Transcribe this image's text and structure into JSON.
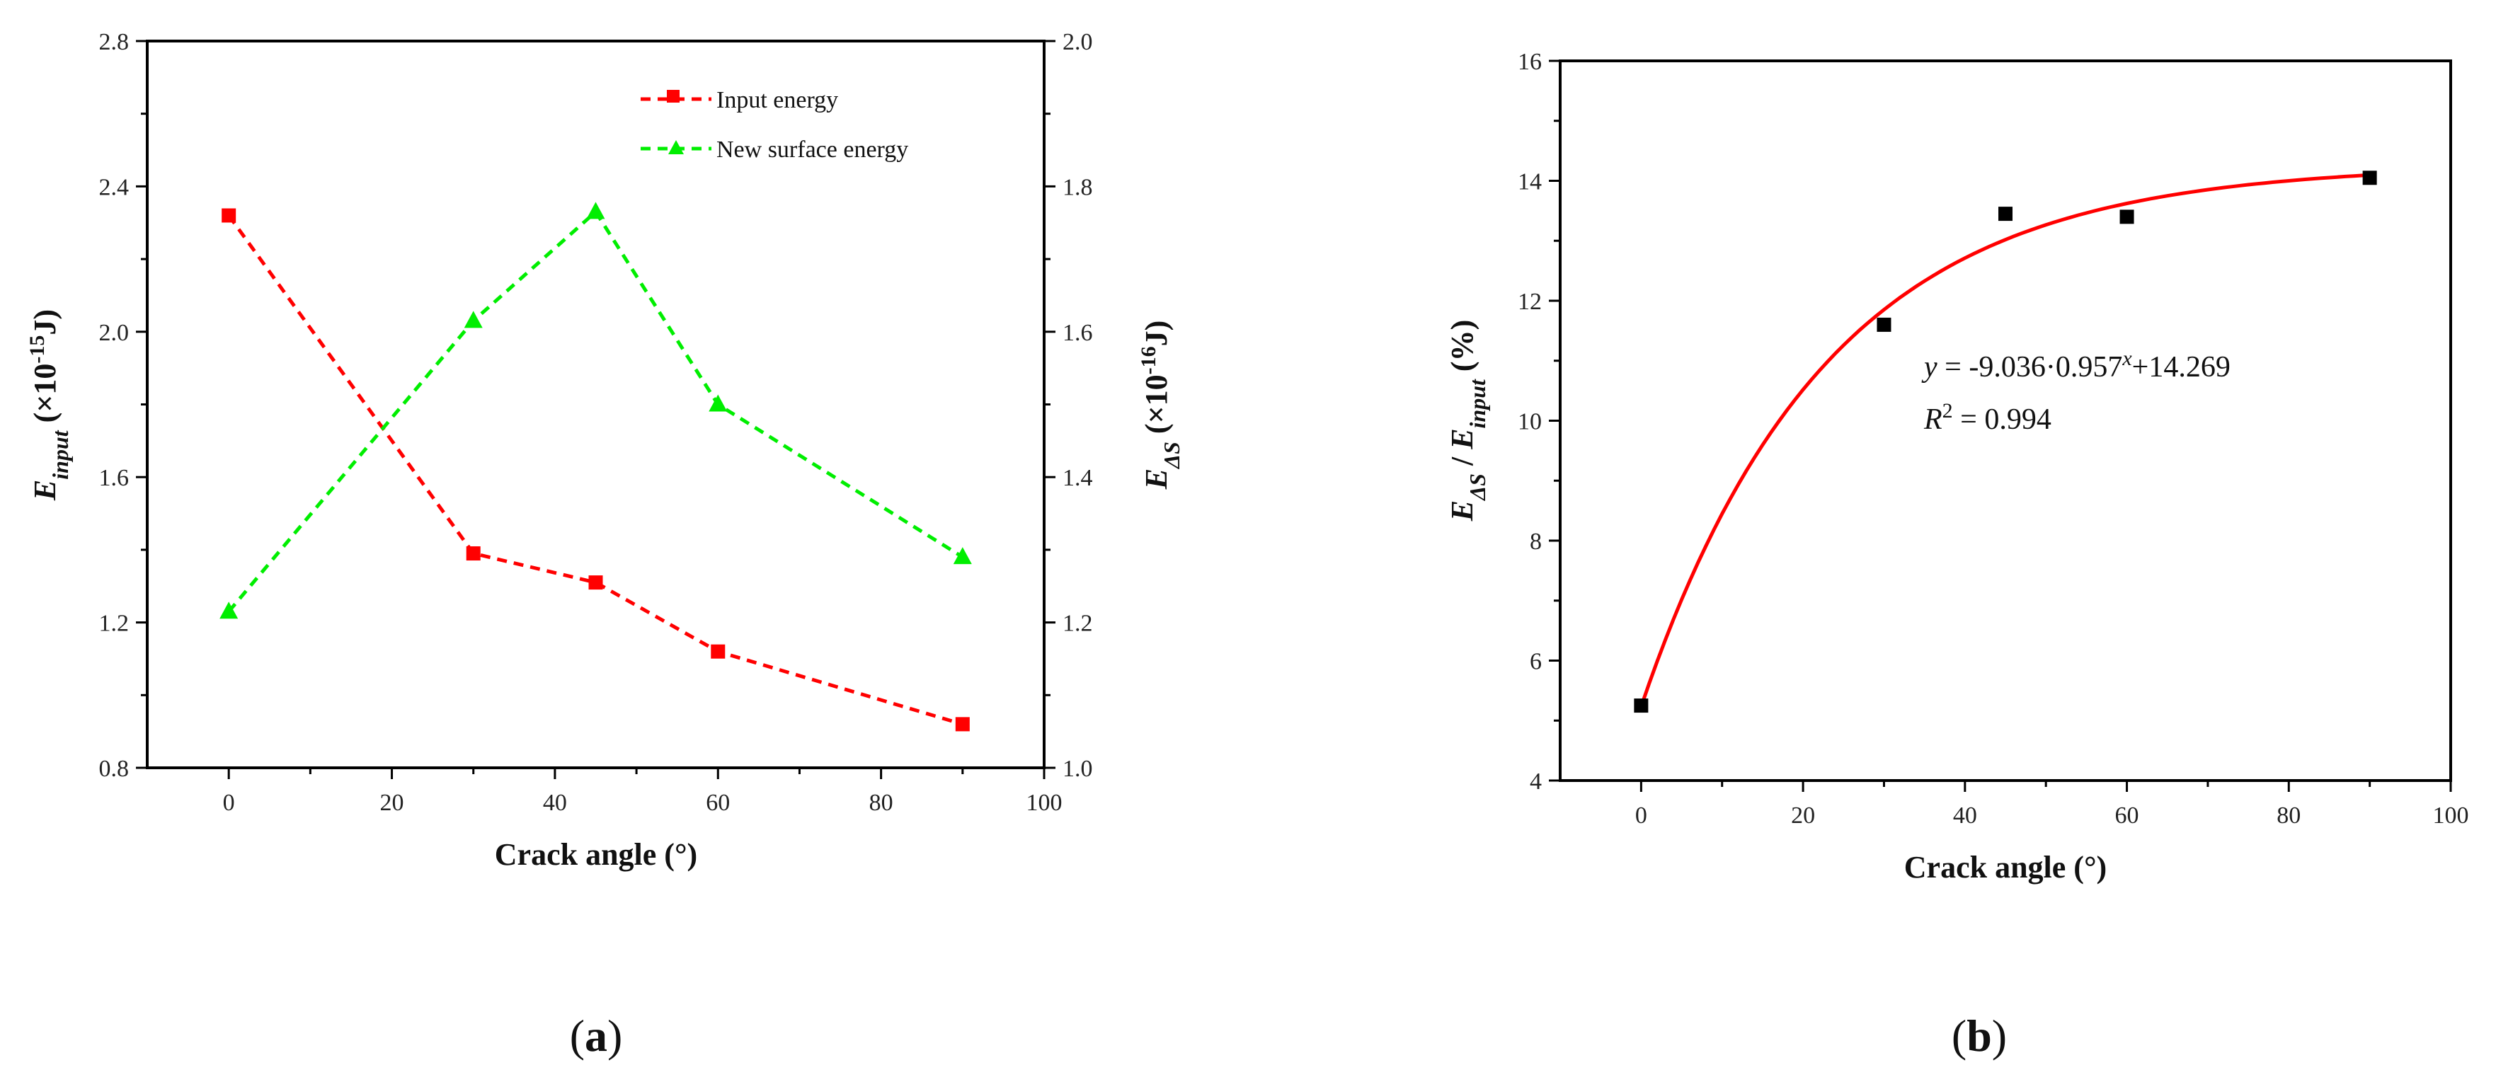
{
  "chart_data": [
    {
      "type": "line",
      "panel_label": "a",
      "xlabel": "Crack angle (°)",
      "xlim": [
        -10,
        100
      ],
      "xticks": [
        0,
        20,
        40,
        60,
        80,
        100
      ],
      "ylabel_left": {
        "main": "E",
        "sub": "input",
        "units": " (×10",
        "exp": "-15",
        "tail": "J)"
      },
      "ylim_left": [
        0.8,
        2.8
      ],
      "yticks_left": [
        "0.8",
        "1.2",
        "1.6",
        "2.0",
        "2.4",
        "2.8"
      ],
      "ylabel_right": {
        "main": "E",
        "sub": "ΔS",
        "units": " (×10",
        "exp": "-16",
        "tail": "J)"
      },
      "ylim_right": [
        1.0,
        2.0
      ],
      "yticks_right": [
        "1.0",
        "1.2",
        "1.4",
        "1.6",
        "1.8",
        "2.0"
      ],
      "x": [
        0,
        30,
        45,
        60,
        90
      ],
      "series": [
        {
          "name": "Input energy",
          "axis": "left",
          "color": "#ff0000",
          "marker": "square",
          "values": [
            2.32,
            1.39,
            1.31,
            1.12,
            0.92
          ]
        },
        {
          "name": "New surface energy",
          "axis": "right",
          "color": "#00ee00",
          "marker": "triangle",
          "values": [
            1.215,
            1.615,
            1.765,
            1.5,
            1.29
          ]
        }
      ]
    },
    {
      "type": "scatter",
      "panel_label": "b",
      "xlabel": "Crack angle (°)",
      "xlim": [
        -10,
        100
      ],
      "xticks": [
        0,
        20,
        40,
        60,
        80,
        100
      ],
      "ylabel": {
        "main1": "E",
        "sub1": "ΔS",
        "sep": " / ",
        "main2": "E",
        "sub2": "input",
        "units": " (%)"
      },
      "ylim": [
        4,
        16
      ],
      "yticks": [
        "4",
        "6",
        "8",
        "10",
        "12",
        "14",
        "16"
      ],
      "x": [
        0,
        30,
        45,
        60,
        90
      ],
      "values": [
        5.25,
        11.6,
        13.45,
        13.4,
        14.05
      ],
      "fit": {
        "color": "#ff0000",
        "a": -9.036,
        "b": 0.957,
        "c": 14.269,
        "equation": {
          "lhs": "y",
          "mid": " = -9.036·0.957",
          "exp": "x",
          "tail": "+14.269"
        },
        "r2": {
          "lhs": "R",
          "exp": "2",
          "tail": " = 0.994"
        }
      },
      "marker_color": "#000000"
    }
  ]
}
